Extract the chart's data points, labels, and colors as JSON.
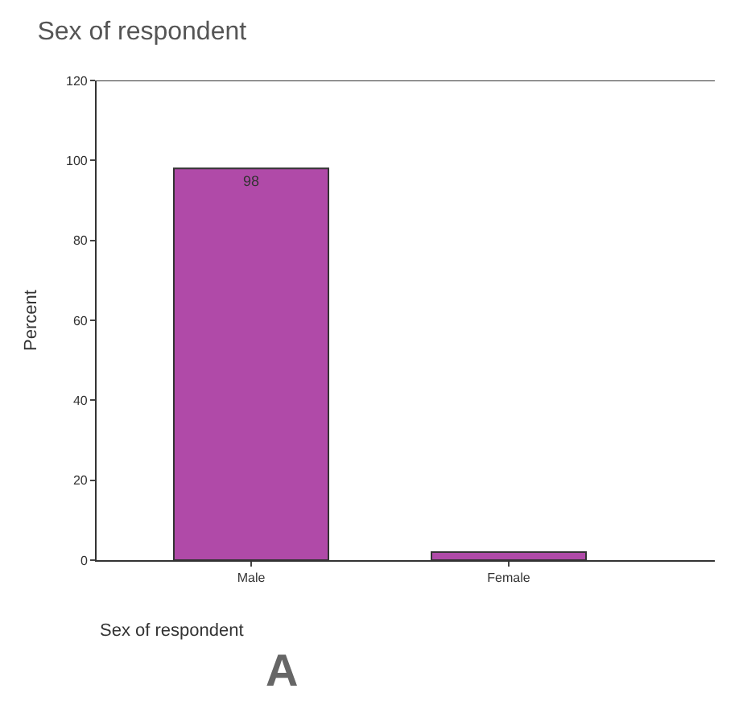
{
  "chart_data": {
    "type": "bar",
    "title": "Sex of respondent",
    "xlabel": "Sex of respondent",
    "ylabel": "Percent",
    "annotations": [
      "A"
    ],
    "categories": [
      "Male",
      "Female"
    ],
    "values": [
      98,
      2
    ],
    "color": "#b04aa8",
    "value_labels": [
      "98",
      null
    ],
    "ylim": [
      0,
      120
    ],
    "yticks": [
      0,
      20,
      40,
      60,
      80,
      100,
      120
    ]
  }
}
